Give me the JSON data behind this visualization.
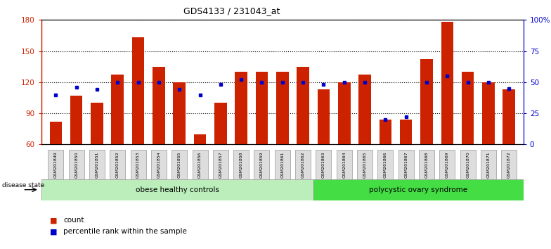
{
  "title": "GDS4133 / 231043_at",
  "samples": [
    "GSM201849",
    "GSM201850",
    "GSM201851",
    "GSM201852",
    "GSM201853",
    "GSM201854",
    "GSM201855",
    "GSM201856",
    "GSM201857",
    "GSM201858",
    "GSM201859",
    "GSM201861",
    "GSM201862",
    "GSM201863",
    "GSM201864",
    "GSM201865",
    "GSM201866",
    "GSM201867",
    "GSM201868",
    "GSM201869",
    "GSM201870",
    "GSM201871",
    "GSM201872"
  ],
  "counts": [
    82,
    107,
    100,
    127,
    163,
    135,
    120,
    70,
    100,
    130,
    130,
    130,
    135,
    113,
    120,
    127,
    84,
    84,
    142,
    178,
    130,
    120,
    113
  ],
  "percentile_pcts": [
    40,
    46,
    44,
    50,
    50,
    50,
    44,
    40,
    48,
    52,
    50,
    50,
    50,
    48,
    50,
    50,
    20,
    22,
    50,
    55,
    50,
    50,
    45
  ],
  "group1_label": "obese healthy controls",
  "group1_count": 13,
  "group2_label": "polycystic ovary syndrome",
  "group2_count": 10,
  "disease_state_label": "disease state",
  "ylim_left": [
    60,
    180
  ],
  "ylim_right": [
    0,
    100
  ],
  "yticks_left": [
    60,
    90,
    120,
    150,
    180
  ],
  "yticks_right": [
    0,
    25,
    50,
    75,
    100
  ],
  "ytick_labels_right": [
    "0",
    "25",
    "50",
    "75",
    "100%"
  ],
  "bar_color": "#cc2200",
  "pct_color": "#0000cc",
  "bg_color": "#ffffff",
  "legend_count_label": "count",
  "legend_pct_label": "percentile rank within the sample",
  "group1_color": "#bbeebb",
  "group2_color": "#44dd44",
  "xtick_box_color": "#dddddd"
}
